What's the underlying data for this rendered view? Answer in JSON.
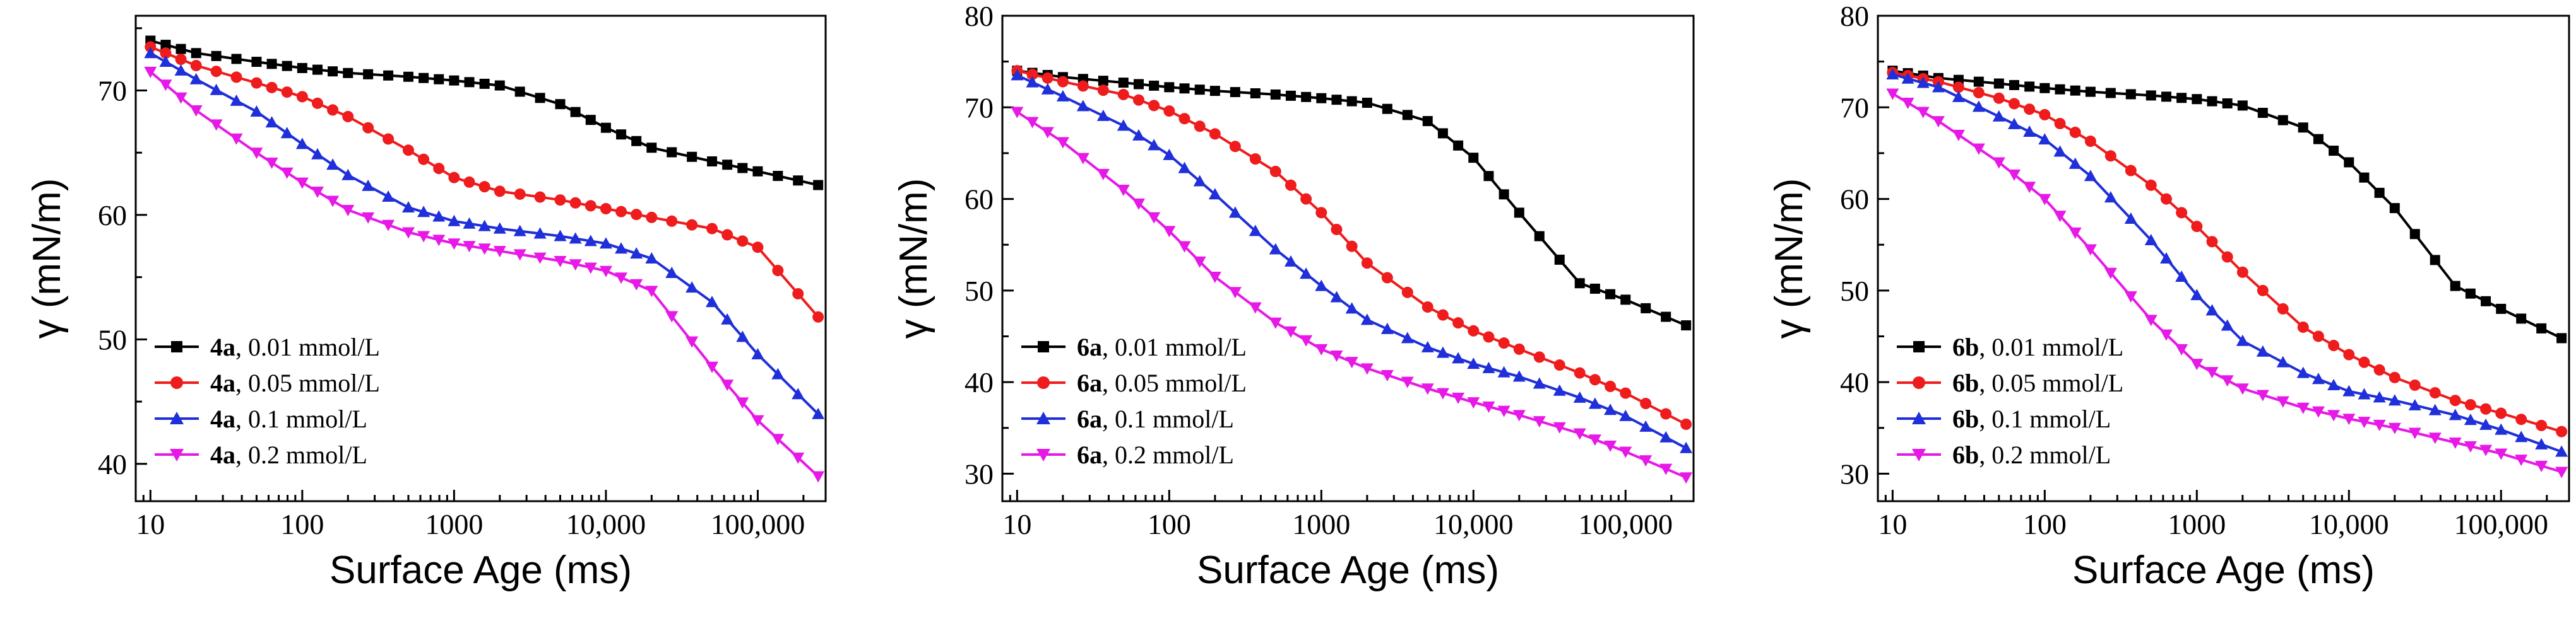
{
  "figure": {
    "colors": {
      "black": "#000000",
      "red": "#ee1c1c",
      "blue": "#1f2fd9",
      "magenta": "#e619e6"
    }
  },
  "chart_data": [
    {
      "type": "line",
      "xscale": "log",
      "xlabel": "Surface Age (ms)",
      "ylabel": "γ (mN/m)",
      "xlim": [
        8,
        280000
      ],
      "ylim": [
        37,
        76
      ],
      "xticks": [
        10,
        100,
        1000,
        10000,
        100000
      ],
      "xtick_labels": [
        "10",
        "100",
        "1000",
        "10,000",
        "100,000"
      ],
      "yticks": [
        40,
        50,
        60,
        70
      ],
      "ytick_labels": [
        "40",
        "50",
        "60",
        "70"
      ],
      "legend_position": "bottom-left",
      "x": [
        10,
        20,
        50,
        100,
        200,
        500,
        1000,
        2000,
        5000,
        10000,
        20000,
        50000,
        100000,
        250000
      ],
      "series": [
        {
          "compound": "4a",
          "label": ", 0.01 mmol/L",
          "color": "#000000",
          "marker": "square",
          "values": [
            74.0,
            73.0,
            72.3,
            71.8,
            71.4,
            71.1,
            70.8,
            70.4,
            68.9,
            67.0,
            65.4,
            64.3,
            63.5,
            62.4
          ]
        },
        {
          "compound": "4a",
          "label": ", 0.05 mmol/L",
          "color": "#ee1c1c",
          "marker": "circle",
          "values": [
            73.5,
            72.0,
            70.6,
            69.5,
            67.9,
            65.2,
            63.0,
            61.9,
            61.2,
            60.5,
            59.8,
            58.9,
            57.4,
            51.8
          ]
        },
        {
          "compound": "4a",
          "label": ", 0.1 mmol/L",
          "color": "#1f2fd9",
          "marker": "triangle-up",
          "values": [
            73.0,
            70.9,
            68.3,
            65.7,
            63.2,
            60.6,
            59.5,
            58.9,
            58.3,
            57.7,
            56.5,
            53.0,
            48.8,
            44.0
          ]
        },
        {
          "compound": "4a",
          "label": ", 0.2 mmol/L",
          "color": "#e619e6",
          "marker": "triangle-down",
          "values": [
            71.5,
            68.4,
            65.0,
            62.6,
            60.4,
            58.6,
            57.7,
            57.1,
            56.3,
            55.5,
            53.9,
            47.8,
            43.5,
            39.0
          ]
        }
      ]
    },
    {
      "type": "line",
      "xscale": "log",
      "xlabel": "Surface Age (ms)",
      "ylabel": "γ (mN/m)",
      "xlim": [
        8,
        280000
      ],
      "ylim": [
        27,
        80
      ],
      "xticks": [
        10,
        100,
        1000,
        10000,
        100000
      ],
      "xtick_labels": [
        "10",
        "100",
        "1000",
        "10,000",
        "100,000"
      ],
      "yticks": [
        30,
        40,
        50,
        60,
        70,
        80
      ],
      "ytick_labels": [
        "30",
        "40",
        "50",
        "60",
        "70",
        "80"
      ],
      "legend_position": "bottom-left",
      "x": [
        10,
        20,
        50,
        100,
        200,
        500,
        1000,
        2000,
        5000,
        10000,
        20000,
        50000,
        100000,
        250000
      ],
      "series": [
        {
          "compound": "6a",
          "label": ", 0.01 mmol/L",
          "color": "#000000",
          "marker": "square",
          "values": [
            74.0,
            73.3,
            72.7,
            72.2,
            71.8,
            71.4,
            71.0,
            70.5,
            68.5,
            64.5,
            58.5,
            50.8,
            49.0,
            46.2
          ]
        },
        {
          "compound": "6a",
          "label": ", 0.05 mmol/L",
          "color": "#ee1c1c",
          "marker": "circle",
          "values": [
            74.0,
            72.8,
            71.4,
            69.6,
            67.1,
            63.0,
            58.5,
            53.0,
            48.2,
            45.6,
            43.6,
            41.0,
            38.8,
            35.4
          ]
        },
        {
          "compound": "6a",
          "label": ", 0.1 mmol/L",
          "color": "#1f2fd9",
          "marker": "triangle-up",
          "values": [
            73.5,
            71.2,
            68.0,
            64.8,
            60.5,
            54.5,
            50.5,
            46.8,
            43.8,
            42.0,
            40.6,
            38.3,
            36.3,
            32.8
          ]
        },
        {
          "compound": "6a",
          "label": ", 0.2 mmol/L",
          "color": "#e619e6",
          "marker": "triangle-down",
          "values": [
            69.5,
            66.2,
            61.0,
            56.5,
            51.5,
            46.5,
            43.6,
            41.5,
            39.3,
            37.8,
            36.4,
            34.4,
            32.4,
            29.6
          ]
        }
      ]
    },
    {
      "type": "line",
      "xscale": "log",
      "xlabel": "Surface Age (ms)",
      "ylabel": "γ (mN/m)",
      "xlim": [
        8,
        280000
      ],
      "ylim": [
        27,
        80
      ],
      "xticks": [
        10,
        100,
        1000,
        10000,
        100000
      ],
      "xtick_labels": [
        "10",
        "100",
        "1000",
        "10,000",
        "100,000"
      ],
      "yticks": [
        30,
        40,
        50,
        60,
        70,
        80
      ],
      "ytick_labels": [
        "30",
        "40",
        "50",
        "60",
        "70",
        "80"
      ],
      "legend_position": "bottom-left",
      "x": [
        10,
        20,
        50,
        100,
        200,
        500,
        1000,
        2000,
        5000,
        10000,
        20000,
        50000,
        100000,
        250000
      ],
      "series": [
        {
          "compound": "6b",
          "label": ", 0.01 mmol/L",
          "color": "#000000",
          "marker": "square",
          "values": [
            74.0,
            73.2,
            72.6,
            72.1,
            71.7,
            71.3,
            70.9,
            70.2,
            67.8,
            64.0,
            59.0,
            50.5,
            48.0,
            44.8
          ]
        },
        {
          "compound": "6b",
          "label": ", 0.05 mmol/L",
          "color": "#ee1c1c",
          "marker": "circle",
          "values": [
            73.8,
            72.8,
            71.0,
            69.2,
            66.3,
            61.5,
            57.0,
            52.0,
            46.0,
            43.0,
            40.5,
            38.0,
            36.6,
            34.6
          ]
        },
        {
          "compound": "6b",
          "label": ", 0.1 mmol/L",
          "color": "#1f2fd9",
          "marker": "triangle-up",
          "values": [
            73.6,
            72.2,
            69.0,
            66.5,
            62.5,
            55.5,
            49.5,
            44.5,
            41.0,
            39.0,
            38.0,
            36.4,
            34.8,
            32.4
          ]
        },
        {
          "compound": "6b",
          "label": ", 0.2 mmol/L",
          "color": "#e619e6",
          "marker": "triangle-down",
          "values": [
            71.5,
            68.5,
            64.0,
            60.0,
            54.5,
            46.8,
            42.0,
            39.3,
            37.2,
            36.0,
            35.0,
            33.4,
            32.2,
            30.2
          ]
        }
      ]
    }
  ]
}
